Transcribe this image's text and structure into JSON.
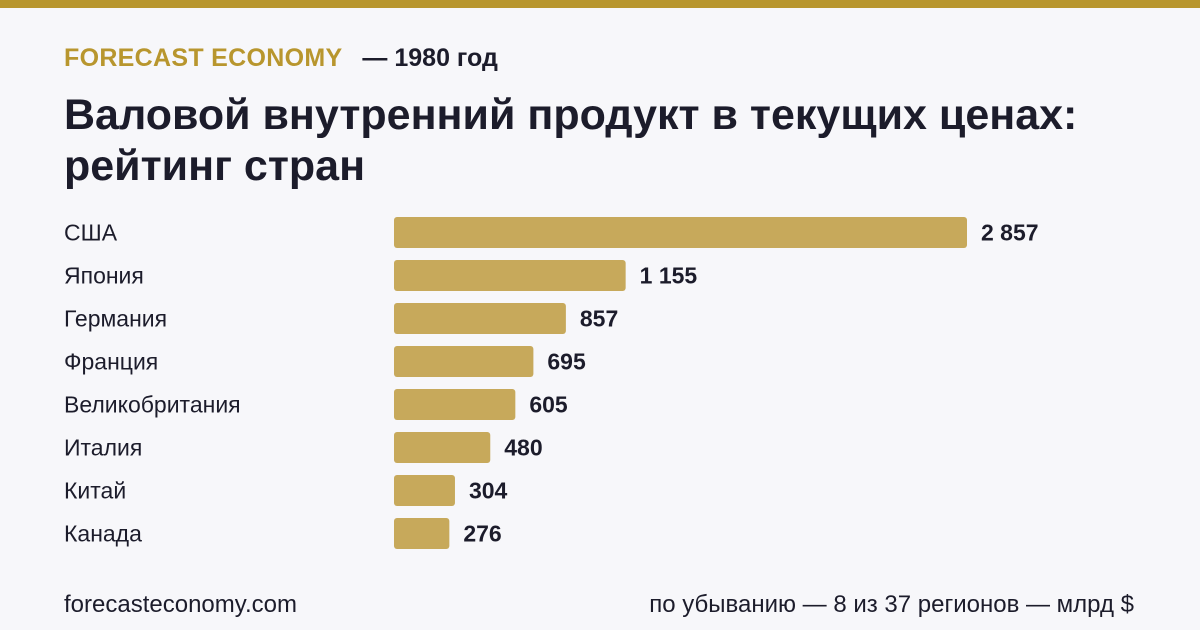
{
  "header": {
    "brand": "FORECAST ECONOMY",
    "year_label": "— 1980 год",
    "title": "Валовой внутренний продукт в текущих ценах: рейтинг стран"
  },
  "footer": {
    "site": "forecasteconomy.com",
    "note": "по убыванию — 8 из 37 регионов — млрд $"
  },
  "colors": {
    "accent": "#b8962e",
    "bar": "#c7a95b",
    "text": "#1c1c2b",
    "background": "#f7f7fa"
  },
  "chart_data": {
    "type": "bar",
    "orientation": "horizontal",
    "title": "Валовой внутренний продукт в текущих ценах: рейтинг стран",
    "unit": "млрд $",
    "categories": [
      "США",
      "Япония",
      "Германия",
      "Франция",
      "Великобритания",
      "Италия",
      "Китай",
      "Канада"
    ],
    "values": [
      2857,
      1155,
      857,
      695,
      605,
      480,
      304,
      276
    ],
    "value_labels": [
      "2 857",
      "1 155",
      "857",
      "695",
      "605",
      "480",
      "304",
      "276"
    ],
    "xlim": [
      0,
      2857
    ],
    "grid": false,
    "legend": "none"
  }
}
